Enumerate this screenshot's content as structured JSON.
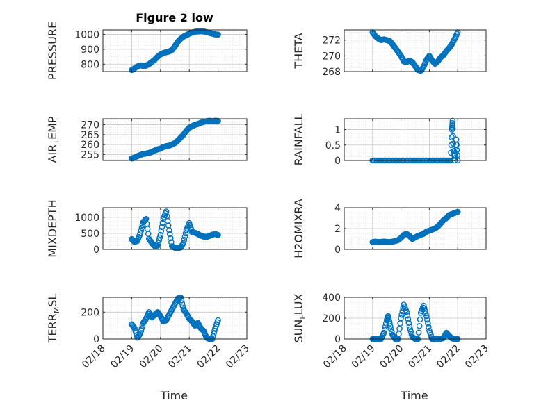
{
  "figure_title": "Figure 2 low",
  "chart_data": [
    {
      "type": "scatter",
      "ylabel": "PRESSURE",
      "ylabel_sub": "",
      "xlabel": "",
      "ylim": [
        750,
        1030
      ],
      "yticks": [
        800,
        900,
        1000
      ],
      "xlim": [
        0,
        5
      ],
      "xticks": [
        "02/18",
        "02/19",
        "02/20",
        "02/21",
        "02/22",
        "02/23"
      ],
      "show_xticklabels": false,
      "grid": true,
      "series": [
        {
          "x": [
            1.0,
            1.1,
            1.2,
            1.3,
            1.4,
            1.5,
            1.6,
            1.7,
            1.8,
            1.9,
            2.0,
            2.1,
            2.2,
            2.3,
            2.4,
            2.5,
            2.6,
            2.7,
            2.8,
            2.9,
            3.0,
            3.1,
            3.2,
            3.3,
            3.4,
            3.5,
            3.6,
            3.7,
            3.8,
            3.9,
            4.0
          ],
          "y": [
            760,
            772,
            785,
            792,
            788,
            790,
            800,
            815,
            830,
            850,
            865,
            875,
            880,
            885,
            895,
            920,
            950,
            970,
            985,
            995,
            1005,
            1012,
            1018,
            1020,
            1022,
            1020,
            1015,
            1010,
            1005,
            1000,
            998
          ]
        }
      ]
    },
    {
      "type": "scatter",
      "ylabel": "THETA",
      "ylabel_sub": "",
      "xlabel": "",
      "ylim": [
        268,
        273.3
      ],
      "yticks": [
        268,
        270,
        272
      ],
      "xlim": [
        0,
        5
      ],
      "xticks": [
        "02/18",
        "02/19",
        "02/20",
        "02/21",
        "02/22",
        "02/23"
      ],
      "show_xticklabels": false,
      "grid": true,
      "series": [
        {
          "x": [
            1.0,
            1.1,
            1.2,
            1.3,
            1.4,
            1.5,
            1.6,
            1.7,
            1.8,
            1.9,
            2.0,
            2.1,
            2.2,
            2.3,
            2.4,
            2.5,
            2.6,
            2.7,
            2.8,
            2.9,
            3.0,
            3.1,
            3.2,
            3.3,
            3.4,
            3.5,
            3.6,
            3.7,
            3.8,
            3.9,
            4.0
          ],
          "y": [
            273.0,
            272.5,
            272.2,
            272.0,
            272.1,
            272.0,
            271.9,
            271.5,
            271.0,
            270.5,
            270.0,
            269.3,
            269.2,
            269.4,
            269.2,
            268.7,
            268.2,
            268.1,
            268.6,
            269.5,
            270.0,
            269.4,
            269.0,
            269.3,
            269.8,
            270.1,
            270.6,
            271.0,
            271.5,
            272.2,
            273.0
          ]
        }
      ]
    },
    {
      "type": "scatter",
      "ylabel": "AIR",
      "ylabel_sub": "T",
      "ylabel_rest": "EMP",
      "xlabel": "",
      "ylim": [
        252,
        273
      ],
      "yticks": [
        255,
        260,
        265,
        270
      ],
      "xlim": [
        0,
        5
      ],
      "xticks": [
        "02/18",
        "02/19",
        "02/20",
        "02/21",
        "02/22",
        "02/23"
      ],
      "show_xticklabels": false,
      "grid": true,
      "series": [
        {
          "x": [
            1.0,
            1.1,
            1.2,
            1.3,
            1.4,
            1.5,
            1.6,
            1.7,
            1.8,
            1.9,
            2.0,
            2.1,
            2.2,
            2.3,
            2.4,
            2.5,
            2.6,
            2.7,
            2.8,
            2.9,
            3.0,
            3.1,
            3.2,
            3.3,
            3.4,
            3.5,
            3.6,
            3.7,
            3.8,
            3.9,
            4.0
          ],
          "y": [
            253.0,
            253.5,
            254.2,
            254.8,
            255.3,
            255.5,
            255.8,
            256.3,
            257.0,
            257.6,
            258.0,
            258.8,
            259.2,
            259.5,
            260.0,
            260.8,
            262.0,
            263.5,
            265.0,
            267.0,
            268.5,
            269.3,
            270.0,
            270.4,
            271.0,
            271.5,
            271.8,
            272.0,
            271.8,
            272.0,
            271.9
          ]
        }
      ]
    },
    {
      "type": "scatter",
      "ylabel": "RAINFALL",
      "ylabel_sub": "",
      "xlabel": "",
      "ylim": [
        0,
        1.35
      ],
      "yticks": [
        0,
        0.5,
        1
      ],
      "xlim": [
        0,
        5
      ],
      "xticks": [
        "02/18",
        "02/19",
        "02/20",
        "02/21",
        "02/22",
        "02/23"
      ],
      "show_xticklabels": false,
      "grid": true,
      "series": [
        {
          "x": [
            1.0,
            1.2,
            1.4,
            1.6,
            1.8,
            2.0,
            2.2,
            2.4,
            2.6,
            2.8,
            3.0,
            3.2,
            3.4,
            3.6,
            3.75,
            3.8,
            3.82,
            3.85,
            3.87,
            3.9,
            3.95,
            4.0
          ],
          "y": [
            0,
            0,
            0,
            0,
            0,
            0,
            0,
            0,
            0,
            0,
            0,
            0,
            0,
            0,
            0,
            1.0,
            1.28,
            0.3,
            0.3,
            0.0,
            0.68,
            0.0
          ]
        }
      ]
    },
    {
      "type": "scatter",
      "ylabel": "MIXDEPTH",
      "ylabel_sub": "",
      "xlabel": "",
      "ylim": [
        0,
        1300
      ],
      "yticks": [
        0,
        500,
        1000
      ],
      "xlim": [
        0,
        5
      ],
      "xticks": [
        "02/18",
        "02/19",
        "02/20",
        "02/21",
        "02/22",
        "02/23"
      ],
      "show_xticklabels": false,
      "grid": true,
      "series": [
        {
          "x": [
            1.0,
            1.1,
            1.2,
            1.3,
            1.4,
            1.5,
            1.6,
            1.7,
            1.8,
            1.9,
            2.0,
            2.1,
            2.2,
            2.3,
            2.4,
            2.5,
            2.6,
            2.7,
            2.8,
            2.9,
            3.0,
            3.1,
            3.2,
            3.3,
            3.4,
            3.5,
            3.6,
            3.7,
            3.8,
            3.9,
            4.0
          ],
          "y": [
            320,
            230,
            270,
            500,
            850,
            950,
            330,
            200,
            100,
            120,
            450,
            950,
            1180,
            600,
            100,
            50,
            40,
            60,
            200,
            600,
            820,
            540,
            520,
            480,
            430,
            400,
            390,
            420,
            460,
            480,
            450
          ]
        }
      ]
    },
    {
      "type": "scatter",
      "ylabel": "H2OMIXRA",
      "ylabel_sub": "",
      "xlabel": "",
      "ylim": [
        0,
        4
      ],
      "yticks": [
        0,
        2,
        4
      ],
      "xlim": [
        0,
        5
      ],
      "xticks": [
        "02/18",
        "02/19",
        "02/20",
        "02/21",
        "02/22",
        "02/23"
      ],
      "show_xticklabels": false,
      "grid": true,
      "series": [
        {
          "x": [
            1.0,
            1.1,
            1.2,
            1.3,
            1.4,
            1.5,
            1.6,
            1.7,
            1.8,
            1.9,
            2.0,
            2.1,
            2.2,
            2.3,
            2.4,
            2.5,
            2.6,
            2.7,
            2.8,
            2.9,
            3.0,
            3.1,
            3.2,
            3.3,
            3.4,
            3.5,
            3.6,
            3.7,
            3.8,
            3.9,
            4.0
          ],
          "y": [
            0.7,
            0.75,
            0.7,
            0.72,
            0.75,
            0.72,
            0.7,
            0.75,
            0.8,
            0.9,
            1.1,
            1.4,
            1.5,
            1.3,
            1.0,
            1.15,
            1.3,
            1.4,
            1.5,
            1.7,
            1.8,
            1.9,
            2.0,
            2.2,
            2.5,
            2.8,
            3.0,
            3.3,
            3.4,
            3.5,
            3.6
          ]
        }
      ]
    },
    {
      "type": "scatter",
      "ylabel": "TERR",
      "ylabel_sub": "M",
      "ylabel_rest": "SL",
      "xlabel": "Time",
      "ylim": [
        0,
        310
      ],
      "yticks": [
        0,
        200
      ],
      "xlim": [
        0,
        5
      ],
      "xticks": [
        "02/18",
        "02/19",
        "02/20",
        "02/21",
        "02/22",
        "02/23"
      ],
      "show_xticklabels": true,
      "grid": true,
      "series": [
        {
          "x": [
            1.0,
            1.1,
            1.2,
            1.3,
            1.4,
            1.5,
            1.6,
            1.7,
            1.8,
            1.9,
            2.0,
            2.1,
            2.2,
            2.3,
            2.4,
            2.5,
            2.6,
            2.7,
            2.8,
            2.9,
            3.0,
            3.1,
            3.2,
            3.3,
            3.4,
            3.5,
            3.6,
            3.7,
            3.8,
            3.9,
            4.0
          ],
          "y": [
            110,
            80,
            10,
            40,
            120,
            150,
            200,
            160,
            180,
            200,
            170,
            130,
            140,
            180,
            220,
            260,
            300,
            310,
            220,
            190,
            150,
            130,
            100,
            120,
            80,
            60,
            10,
            0,
            0,
            80,
            140
          ]
        }
      ]
    },
    {
      "type": "scatter",
      "ylabel": "SUN",
      "ylabel_sub": "F",
      "ylabel_rest": "LUX",
      "xlabel": "Time",
      "ylim": [
        0,
        400
      ],
      "yticks": [
        0,
        200,
        400
      ],
      "xlim": [
        0,
        5
      ],
      "xticks": [
        "02/18",
        "02/19",
        "02/20",
        "02/21",
        "02/22",
        "02/23"
      ],
      "show_xticklabels": true,
      "grid": true,
      "series": [
        {
          "x": [
            1.0,
            1.1,
            1.2,
            1.3,
            1.4,
            1.5,
            1.55,
            1.6,
            1.7,
            1.8,
            1.9,
            2.0,
            2.1,
            2.2,
            2.3,
            2.4,
            2.5,
            2.6,
            2.7,
            2.8,
            2.9,
            3.0,
            3.1,
            3.2,
            3.3,
            3.4,
            3.5,
            3.6,
            3.7,
            3.8,
            3.9,
            4.0
          ],
          "y": [
            0,
            0,
            0,
            0,
            60,
            180,
            220,
            150,
            40,
            0,
            0,
            200,
            330,
            260,
            120,
            20,
            0,
            0,
            250,
            320,
            220,
            80,
            0,
            0,
            0,
            0,
            10,
            60,
            30,
            5,
            0,
            0
          ]
        }
      ]
    }
  ]
}
